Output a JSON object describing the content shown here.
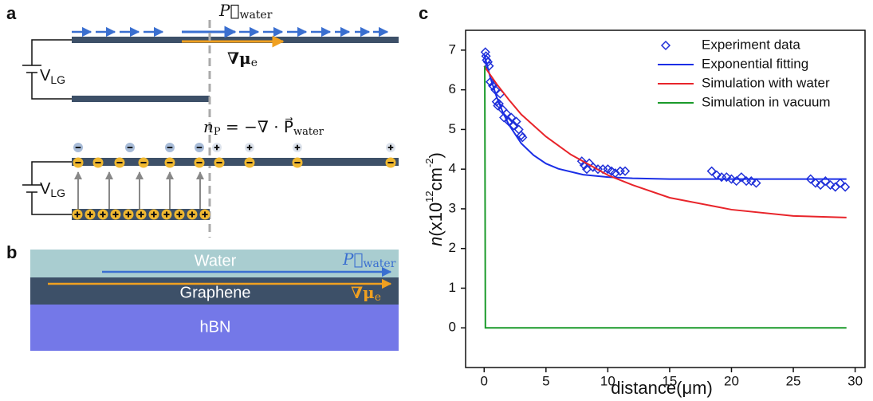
{
  "panels": {
    "a": {
      "label": "a",
      "p_water": {
        "symbol": "P⃗",
        "sub": "water"
      },
      "grad_mu": {
        "symbol": "∇μ",
        "sub": "e"
      },
      "v_lg_top": {
        "main": "V",
        "sub": "LG"
      },
      "v_lg_bottom": {
        "main": "V",
        "sub": "LG"
      },
      "equation": {
        "lhs": "n",
        "lhs_sub": "P",
        "rhs": " = −∇ · P⃗",
        "rhs_sub": "water"
      }
    },
    "b": {
      "label": "b",
      "water": "Water",
      "graphene": "Graphene",
      "hbn": "hBN",
      "p_water": {
        "symbol": "P⃗",
        "sub": "water"
      },
      "grad_mu": {
        "symbol": "∇μ",
        "sub": "e"
      }
    }
  },
  "chart_data": {
    "type": "scatter",
    "panel_label": "c",
    "x_label": "distance(μm)",
    "y_label_parts": [
      "n",
      "(x10",
      "12",
      "cm",
      "-2",
      ")"
    ],
    "xlim": [
      -1.5,
      30.8
    ],
    "ylim": [
      -1,
      7.5
    ],
    "xticks": [
      0,
      5,
      10,
      15,
      20,
      25,
      30
    ],
    "yticks": [
      0,
      1,
      2,
      3,
      4,
      5,
      6,
      7
    ],
    "legend": "upper right",
    "series": [
      {
        "name": "Experiment data",
        "mode": "markers",
        "color": "#1f2fd8",
        "x": [
          0.1,
          0.15,
          0.2,
          0.3,
          0.4,
          0.5,
          0.7,
          0.9,
          1.0,
          1.1,
          1.2,
          1.3,
          1.5,
          1.6,
          1.8,
          2.0,
          2.2,
          2.4,
          2.6,
          2.8,
          3.0,
          3.1,
          7.9,
          8.1,
          8.3,
          8.5,
          8.8,
          9.2,
          9.6,
          10.0,
          10.3,
          10.6,
          11.0,
          11.4,
          18.4,
          18.8,
          19.2,
          19.6,
          20.0,
          20.4,
          20.8,
          21.2,
          21.6,
          22.0,
          26.4,
          26.8,
          27.2,
          27.6,
          28.0,
          28.4,
          28.8,
          29.2
        ],
        "values": [
          6.95,
          6.85,
          6.75,
          6.7,
          6.6,
          6.2,
          6.1,
          6.0,
          5.7,
          5.6,
          5.65,
          5.9,
          5.5,
          5.3,
          5.4,
          5.2,
          5.3,
          5.1,
          5.2,
          5.0,
          4.85,
          4.8,
          4.2,
          4.1,
          4.0,
          4.15,
          4.05,
          4.0,
          4.0,
          4.0,
          3.95,
          3.9,
          3.95,
          3.95,
          3.95,
          3.85,
          3.8,
          3.8,
          3.75,
          3.7,
          3.8,
          3.7,
          3.7,
          3.65,
          3.75,
          3.65,
          3.6,
          3.7,
          3.6,
          3.55,
          3.65,
          3.55
        ]
      },
      {
        "name": "Exponential fitting",
        "mode": "lines",
        "color": "#1a2ee6",
        "x": [
          0,
          0.5,
          1,
          1.5,
          2,
          3,
          4,
          5,
          6,
          8,
          10,
          12,
          15,
          20,
          25,
          29.3
        ],
        "values": [
          6.9,
          6.31,
          5.83,
          5.44,
          5.12,
          4.65,
          4.35,
          4.14,
          4.01,
          3.86,
          3.8,
          3.77,
          3.75,
          3.75,
          3.75,
          3.75
        ]
      },
      {
        "name": "Simulation with water",
        "mode": "lines",
        "color": "#e8242a",
        "x": [
          0,
          1,
          2,
          3,
          5,
          7,
          10,
          12,
          15,
          20,
          25,
          29.3
        ],
        "values": [
          6.6,
          6.15,
          5.75,
          5.38,
          4.82,
          4.37,
          3.85,
          3.6,
          3.28,
          2.98,
          2.82,
          2.78
        ]
      },
      {
        "name": "Simulation in vacuum",
        "mode": "lines",
        "color": "#1a9a2a",
        "x": [
          0.05,
          0.1,
          29.3
        ],
        "values": [
          6.6,
          0,
          0
        ]
      }
    ]
  }
}
